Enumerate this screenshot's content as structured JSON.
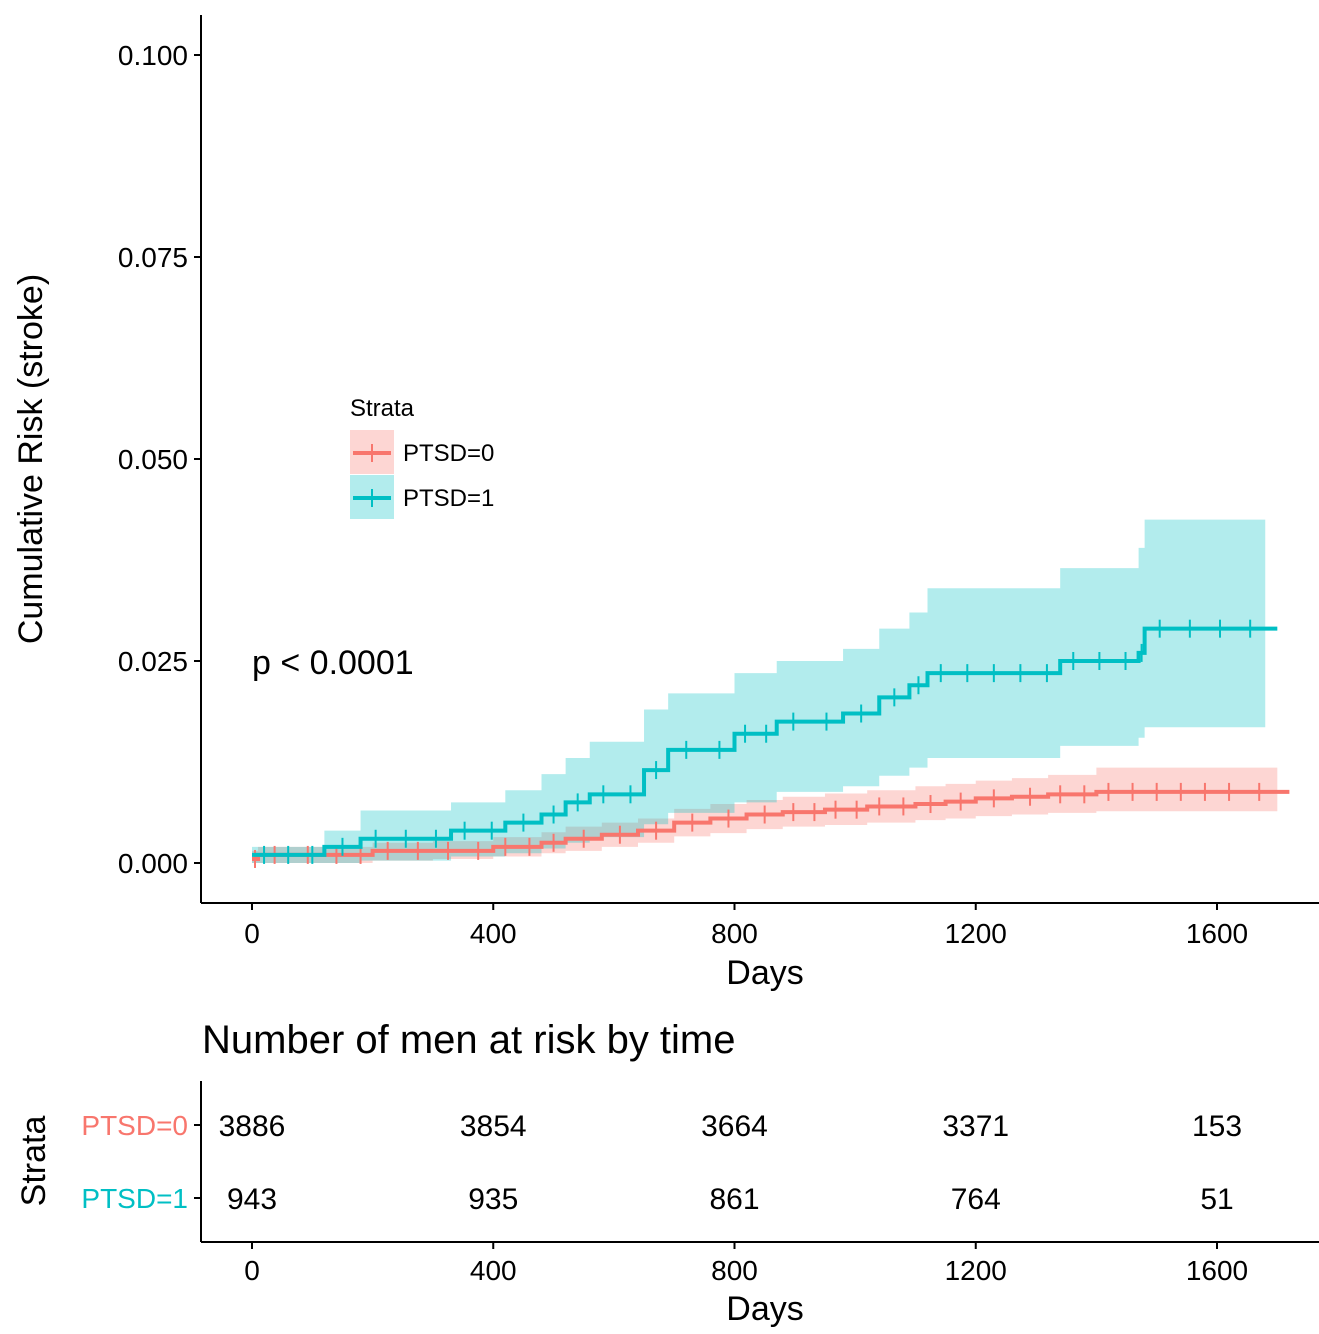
{
  "chart_data": [
    {
      "type": "line",
      "subtype": "step",
      "title": "",
      "xlabel": "Days",
      "ylabel": "Cumulative Risk (stroke)",
      "xlim": [
        -100,
        1750
      ],
      "ylim": [
        -0.005,
        0.105
      ],
      "x_ticks": [
        "0",
        "400",
        "800",
        "1200",
        "1600"
      ],
      "x_tick_values": [
        0,
        400,
        800,
        1200,
        1600
      ],
      "y_ticks": [
        "0.000",
        "0.025",
        "0.050",
        "0.075",
        "0.100"
      ],
      "y_tick_values": [
        0,
        0.025,
        0.05,
        0.075,
        0.1
      ],
      "grid": false,
      "annotation": "p < 0.0001",
      "legend": {
        "title": "Strata",
        "position": "center-left",
        "entries": [
          "PTSD=0",
          "PTSD=1"
        ]
      },
      "series": [
        {
          "name": "PTSD=0",
          "color": "#F8766D",
          "band_color": "#F8766D",
          "x": [
            0,
            10,
            120,
            200,
            300,
            400,
            480,
            520,
            580,
            640,
            700,
            760,
            820,
            880,
            950,
            1020,
            1100,
            1150,
            1200,
            1260,
            1320,
            1400,
            1480,
            1560,
            1640,
            1700
          ],
          "y": [
            0.0005,
            0.001,
            0.001,
            0.0015,
            0.0015,
            0.002,
            0.0025,
            0.003,
            0.0035,
            0.004,
            0.005,
            0.0055,
            0.006,
            0.0063,
            0.0066,
            0.007,
            0.0073,
            0.0076,
            0.008,
            0.0082,
            0.0085,
            0.0088,
            0.0088,
            0.0088,
            0.0088,
            0.0088
          ],
          "lower": [
            0.0,
            0.0,
            0.0,
            0.0003,
            0.0005,
            0.0008,
            0.0012,
            0.0015,
            0.002,
            0.0025,
            0.0033,
            0.0037,
            0.0042,
            0.0045,
            0.0047,
            0.005,
            0.0053,
            0.0055,
            0.0058,
            0.006,
            0.0062,
            0.0064,
            0.0064,
            0.0064,
            0.0064,
            0.0064
          ],
          "upper": [
            0.0015,
            0.002,
            0.002,
            0.0025,
            0.0027,
            0.0032,
            0.0038,
            0.0045,
            0.005,
            0.0055,
            0.0067,
            0.0073,
            0.0078,
            0.0082,
            0.0086,
            0.009,
            0.0095,
            0.0098,
            0.0102,
            0.0105,
            0.0109,
            0.0118,
            0.0118,
            0.0118,
            0.0118,
            0.0118
          ]
        },
        {
          "name": "PTSD=1",
          "color": "#00BFC4",
          "band_color": "#00BFC4",
          "x": [
            0,
            120,
            180,
            330,
            420,
            480,
            520,
            560,
            650,
            690,
            750,
            800,
            870,
            980,
            1040,
            1090,
            1120,
            1340,
            1470,
            1480,
            1680
          ],
          "y": [
            0.001,
            0.002,
            0.003,
            0.004,
            0.005,
            0.006,
            0.0075,
            0.0085,
            0.0115,
            0.014,
            0.014,
            0.016,
            0.0175,
            0.0185,
            0.0205,
            0.022,
            0.0235,
            0.025,
            0.026,
            0.029,
            0.029
          ],
          "lower": [
            0.0,
            0.0,
            0.0003,
            0.0008,
            0.0012,
            0.0018,
            0.0025,
            0.0032,
            0.0048,
            0.0062,
            0.0062,
            0.0075,
            0.0088,
            0.0095,
            0.0108,
            0.0118,
            0.013,
            0.0145,
            0.0155,
            0.0168,
            0.0168
          ],
          "upper": [
            0.002,
            0.004,
            0.0065,
            0.0075,
            0.009,
            0.011,
            0.013,
            0.015,
            0.019,
            0.021,
            0.021,
            0.0235,
            0.025,
            0.0265,
            0.029,
            0.031,
            0.034,
            0.0365,
            0.039,
            0.0425,
            0.0425
          ]
        }
      ]
    },
    {
      "type": "table",
      "title": "Number of men at risk by time",
      "xlabel": "Days",
      "ylabel": "Strata",
      "x_ticks": [
        "0",
        "400",
        "800",
        "1200",
        "1600"
      ],
      "x_tick_values": [
        0,
        400,
        800,
        1200,
        1600
      ],
      "rows": [
        {
          "name": "PTSD=0",
          "color": "#F8766D",
          "values": [
            "3886",
            "3854",
            "3664",
            "3371",
            "153"
          ]
        },
        {
          "name": "PTSD=1",
          "color": "#00BFC4",
          "values": [
            "943",
            "935",
            "861",
            "764",
            "51"
          ]
        }
      ]
    }
  ]
}
